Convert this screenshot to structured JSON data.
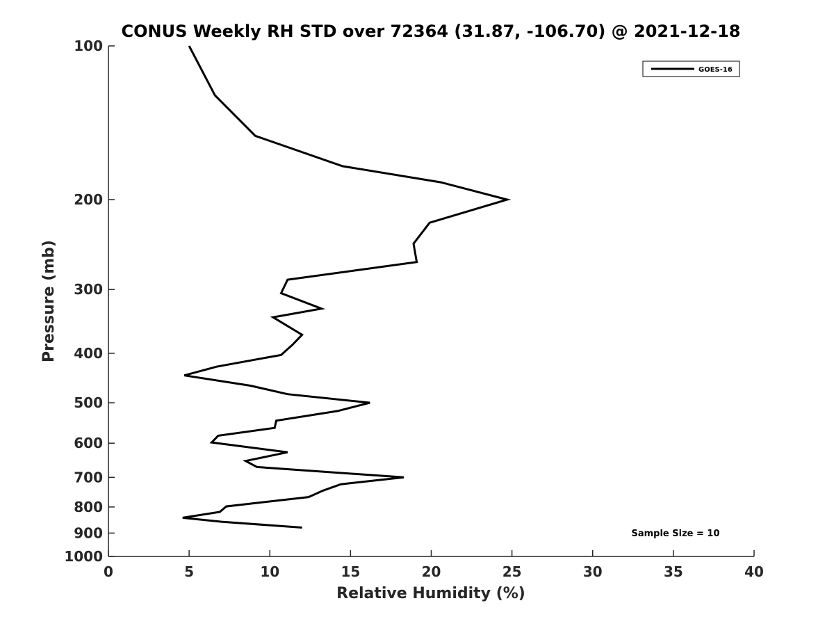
{
  "chart_data": {
    "type": "line",
    "title": "CONUS Weekly RH STD over 72364 (31.87, -106.70) @ 2021-12-18",
    "xlabel": "Relative Humidity (%)",
    "ylabel": "Pressure (mb)",
    "xlim": [
      0,
      40
    ],
    "ylim": [
      100,
      1000
    ],
    "y_scale": "log",
    "y_inverted": true,
    "x_ticks": [
      0,
      5,
      10,
      15,
      20,
      25,
      30,
      35,
      40
    ],
    "x_tick_labels": [
      "0",
      "5",
      "10",
      "15",
      "20",
      "25",
      "30",
      "35",
      "40"
    ],
    "y_ticks": [
      100,
      200,
      300,
      400,
      500,
      600,
      700,
      800,
      900,
      1000
    ],
    "y_tick_labels": [
      "100",
      "200",
      "300",
      "400",
      "500",
      "600",
      "700",
      "800",
      "900",
      "1000"
    ],
    "grid": false,
    "legend_position": "top-right",
    "annotation": "Sample Size = 10",
    "series": [
      {
        "name": "GOES-16",
        "color": "#000000",
        "x": [
          5.0,
          6.6,
          9.1,
          14.5,
          20.6,
          24.7,
          19.9,
          18.9,
          19.1,
          11.1,
          10.7,
          13.2,
          10.2,
          12.0,
          11.4,
          10.7,
          6.7,
          4.7,
          8.8,
          11.1,
          16.2,
          14.2,
          10.4,
          10.3,
          6.8,
          6.4,
          11.1,
          8.5,
          9.2,
          18.3,
          14.4,
          13.3,
          12.4,
          7.3,
          6.9,
          4.6,
          7.0,
          12.0
        ],
        "y": [
          100,
          125,
          150,
          172,
          185,
          200,
          222,
          244,
          265,
          287,
          305,
          327,
          340,
          368,
          385,
          403,
          425,
          442,
          463,
          481,
          500,
          519,
          542,
          560,
          580,
          598,
          625,
          650,
          668,
          700,
          722,
          743,
          765,
          798,
          818,
          840,
          855,
          878
        ]
      }
    ]
  }
}
